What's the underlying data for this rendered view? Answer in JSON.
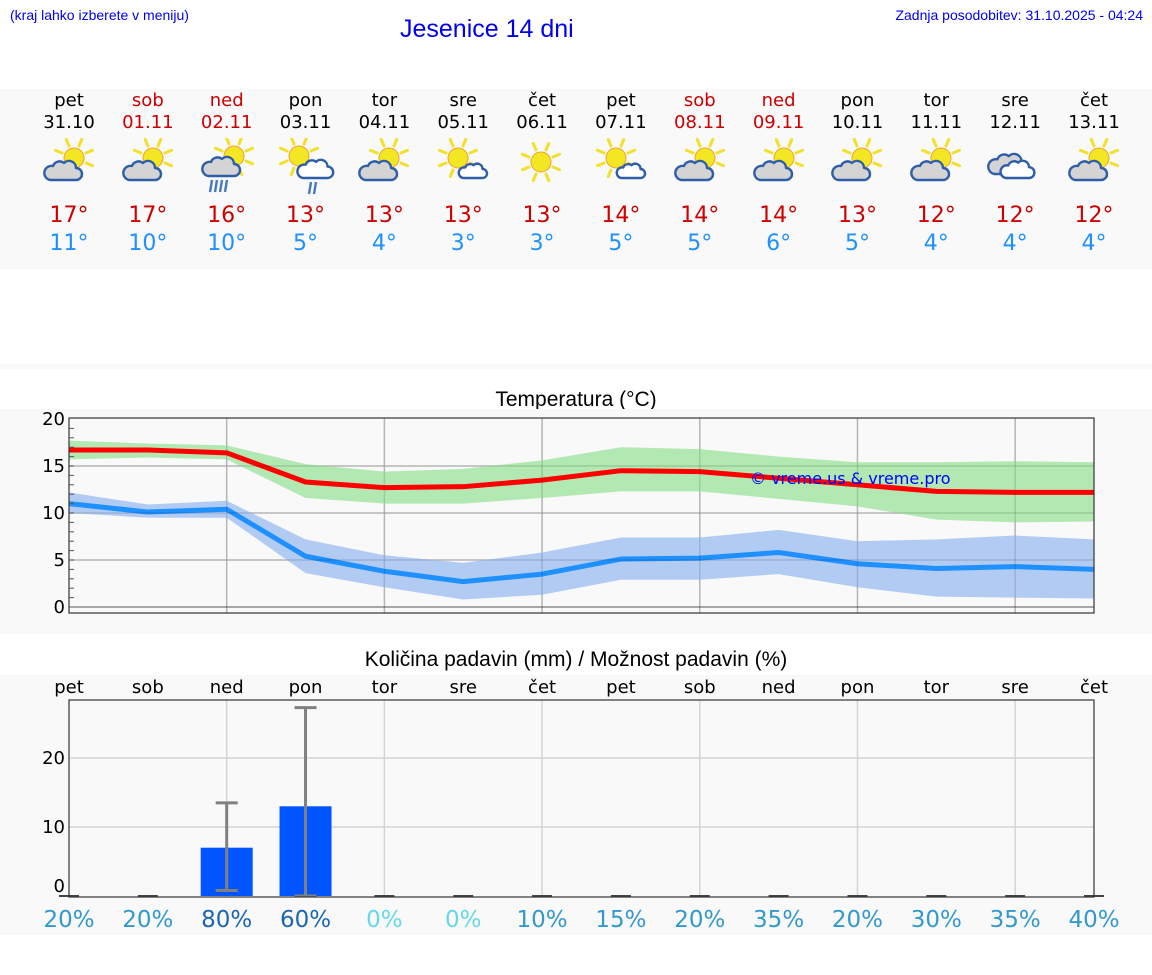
{
  "header": {
    "hint": "(kraj lahko izberete v meniju)",
    "title": "Jesenice 14 dni",
    "updated": "Zadnja posodobitev: 31.10.2025 - 04:24"
  },
  "colors": {
    "link_blue": "#0000ee",
    "tmax": "#cc0000",
    "tmin": "#1e90ff",
    "tmax_line": "#ff0000",
    "tmax_band": "#aee8ae",
    "tmin_line": "#1e90ff",
    "tmin_band": "#aec8f2",
    "precip_bar": "#0055ff",
    "error_bar": "#808080"
  },
  "days": [
    {
      "name": "pet",
      "date": "31.10",
      "weekend": false,
      "icon": "partly-cloudy-icon",
      "tmax": "17°",
      "tmin": "11°"
    },
    {
      "name": "sob",
      "date": "01.11",
      "weekend": true,
      "icon": "partly-cloudy-icon",
      "tmax": "17°",
      "tmin": "10°"
    },
    {
      "name": "ned",
      "date": "02.11",
      "weekend": true,
      "icon": "cloudy-sun-rain-icon",
      "tmax": "16°",
      "tmin": "10°"
    },
    {
      "name": "pon",
      "date": "03.11",
      "weekend": false,
      "icon": "sun-cloud-light-rain-icon",
      "tmax": "13°",
      "tmin": "5°"
    },
    {
      "name": "tor",
      "date": "04.11",
      "weekend": false,
      "icon": "partly-cloudy-icon",
      "tmax": "13°",
      "tmin": "4°"
    },
    {
      "name": "sre",
      "date": "05.11",
      "weekend": false,
      "icon": "mostly-sunny-icon",
      "tmax": "13°",
      "tmin": "3°"
    },
    {
      "name": "čet",
      "date": "06.11",
      "weekend": false,
      "icon": "sunny-icon",
      "tmax": "13°",
      "tmin": "3°"
    },
    {
      "name": "pet",
      "date": "07.11",
      "weekend": false,
      "icon": "mostly-sunny-icon",
      "tmax": "14°",
      "tmin": "5°"
    },
    {
      "name": "sob",
      "date": "08.11",
      "weekend": true,
      "icon": "partly-cloudy-icon",
      "tmax": "14°",
      "tmin": "5°"
    },
    {
      "name": "ned",
      "date": "09.11",
      "weekend": true,
      "icon": "partly-cloudy-icon",
      "tmax": "14°",
      "tmin": "6°"
    },
    {
      "name": "pon",
      "date": "10.11",
      "weekend": false,
      "icon": "partly-cloudy-icon",
      "tmax": "13°",
      "tmin": "5°"
    },
    {
      "name": "tor",
      "date": "11.11",
      "weekend": false,
      "icon": "partly-cloudy-icon",
      "tmax": "12°",
      "tmin": "4°"
    },
    {
      "name": "sre",
      "date": "12.11",
      "weekend": false,
      "icon": "overcast-icon",
      "tmax": "12°",
      "tmin": "4°"
    },
    {
      "name": "čet",
      "date": "13.11",
      "weekend": false,
      "icon": "partly-cloudy-icon",
      "tmax": "12°",
      "tmin": "4°"
    }
  ],
  "temp_chart": {
    "title": "Temperatura (°C)",
    "watermark": "© vreme.us & vreme.pro",
    "y_ticks": [
      "0",
      "5",
      "10",
      "15",
      "20"
    ]
  },
  "precip_chart": {
    "title": "Količina padavin (mm) / Možnost padavin (%)",
    "y_ticks": [
      "0",
      "10",
      "20"
    ],
    "day_labels": [
      "pet",
      "sob",
      "ned",
      "pon",
      "tor",
      "sre",
      "čet",
      "pet",
      "sob",
      "ned",
      "pon",
      "tor",
      "sre",
      "čet"
    ],
    "probabilities": [
      "20%",
      "20%",
      "80%",
      "60%",
      "0%",
      "0%",
      "10%",
      "15%",
      "20%",
      "35%",
      "20%",
      "30%",
      "35%",
      "40%"
    ],
    "prob_colors": [
      "#3399cc",
      "#3399cc",
      "#1a66b3",
      "#1a66b3",
      "#66d9e8",
      "#66d9e8",
      "#3399cc",
      "#3399cc",
      "#3399cc",
      "#3399cc",
      "#3399cc",
      "#3399cc",
      "#3399cc",
      "#3399cc"
    ]
  },
  "chart_data": [
    {
      "type": "line",
      "title": "Temperatura (°C)",
      "xlabel": "",
      "ylabel": "°C",
      "ylim": [
        0,
        20
      ],
      "grid": true,
      "categories": [
        "31.10",
        "01.11",
        "02.11",
        "03.11",
        "04.11",
        "05.11",
        "06.11",
        "07.11",
        "08.11",
        "09.11",
        "10.11",
        "11.11",
        "12.11",
        "13.11"
      ],
      "series": [
        {
          "name": "Tmax",
          "values": [
            16.7,
            16.7,
            16.4,
            13.3,
            12.7,
            12.8,
            13.5,
            14.5,
            14.4,
            13.7,
            13.0,
            12.3,
            12.2,
            12.2
          ]
        },
        {
          "name": "Tmax upper",
          "values": [
            17.7,
            17.4,
            17.2,
            15.2,
            14.4,
            14.7,
            15.6,
            17.0,
            16.8,
            16.0,
            15.4,
            15.4,
            15.5,
            15.4
          ]
        },
        {
          "name": "Tmax lower",
          "values": [
            15.7,
            15.9,
            15.7,
            11.6,
            11.0,
            11.0,
            11.6,
            12.3,
            12.3,
            11.5,
            10.7,
            9.3,
            9.0,
            9.1
          ]
        },
        {
          "name": "Tmin",
          "values": [
            11.0,
            10.1,
            10.4,
            5.4,
            3.8,
            2.7,
            3.5,
            5.1,
            5.2,
            5.8,
            4.6,
            4.1,
            4.3,
            4.0
          ]
        },
        {
          "name": "Tmin upper",
          "values": [
            12.2,
            10.9,
            11.3,
            7.2,
            5.5,
            4.7,
            5.8,
            7.4,
            7.4,
            8.2,
            7.0,
            7.2,
            7.6,
            7.2
          ]
        },
        {
          "name": "Tmin lower",
          "values": [
            10.0,
            9.5,
            9.5,
            3.6,
            2.1,
            0.8,
            1.3,
            2.9,
            2.9,
            3.5,
            2.1,
            1.1,
            1.0,
            0.9
          ]
        }
      ],
      "annotations": [
        "© vreme.us & vreme.pro"
      ]
    },
    {
      "type": "bar",
      "title": "Količina padavin (mm) / Možnost padavin (%)",
      "xlabel": "",
      "ylabel": "mm",
      "ylim": [
        0,
        28
      ],
      "grid": true,
      "categories": [
        "pet",
        "sob",
        "ned",
        "pon",
        "tor",
        "sre",
        "čet",
        "pet",
        "sob",
        "ned",
        "pon",
        "tor",
        "sre",
        "čet"
      ],
      "series": [
        {
          "name": "Količina padavin (mm)",
          "values": [
            0,
            0,
            7.0,
            13.0,
            0,
            0,
            0,
            0,
            0,
            0,
            0,
            0,
            0,
            0
          ]
        },
        {
          "name": "Razpon min (mm)",
          "values": [
            0,
            0,
            0.8,
            0,
            0,
            0,
            0,
            0,
            0,
            0,
            0,
            0,
            0,
            0
          ]
        },
        {
          "name": "Razpon max (mm)",
          "values": [
            0,
            0,
            13.5,
            27.3,
            0,
            0,
            0,
            0,
            0,
            0,
            0,
            0,
            0,
            0
          ]
        },
        {
          "name": "Možnost padavin (%)",
          "values": [
            20,
            20,
            80,
            60,
            0,
            0,
            10,
            15,
            20,
            35,
            20,
            30,
            35,
            40
          ]
        }
      ]
    }
  ]
}
